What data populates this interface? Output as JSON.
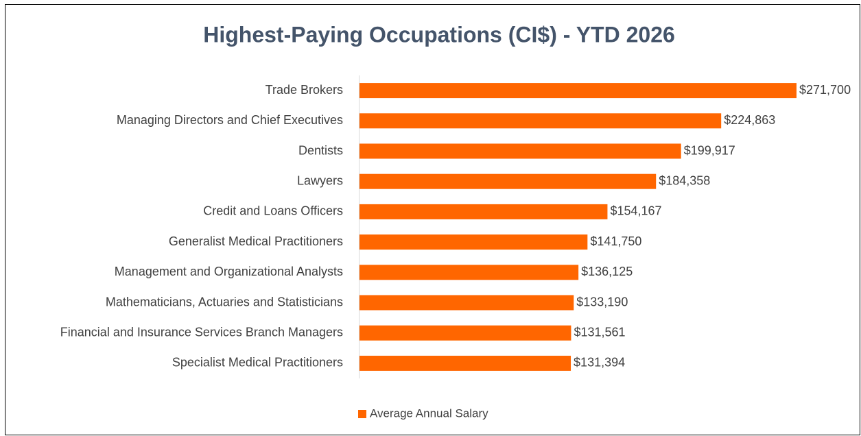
{
  "chart_data": {
    "type": "bar",
    "orientation": "horizontal",
    "title": "Highest-Paying Occupations (CI$) - YTD 2026",
    "categories": [
      "Trade Brokers",
      "Managing Directors and Chief Executives",
      "Dentists",
      "Lawyers",
      "Credit and Loans Officers",
      "Generalist Medical Practitioners",
      "Management and Organizational Analysts",
      "Mathematicians, Actuaries and Statisticians",
      "Financial and Insurance Services Branch Managers",
      "Specialist Medical Practitioners"
    ],
    "series": [
      {
        "name": "Average Annual Salary",
        "color": "#ff6600",
        "values": [
          271700,
          224863,
          199917,
          184358,
          154167,
          141750,
          136125,
          133190,
          131561,
          131394
        ],
        "value_labels": [
          "$271,700",
          "$224,863",
          "$199,917",
          "$184,358",
          "$154,167",
          "$141,750",
          "$136,125",
          "$133,190",
          "$131,561",
          "$131,394"
        ]
      }
    ],
    "legend": "bottom"
  }
}
